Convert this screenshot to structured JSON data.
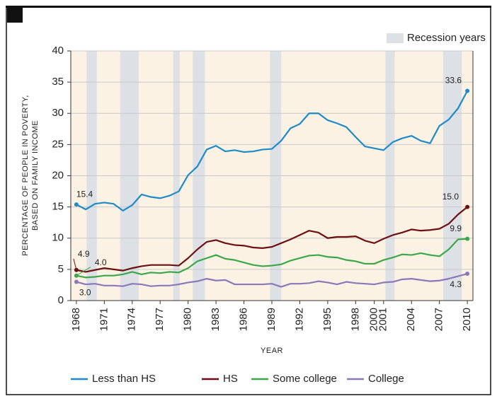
{
  "chart_data": {
    "type": "line",
    "x": [
      1968,
      1969,
      1970,
      1971,
      1972,
      1973,
      1974,
      1975,
      1976,
      1977,
      1978,
      1979,
      1980,
      1981,
      1982,
      1983,
      1984,
      1985,
      1986,
      1987,
      1988,
      1989,
      1990,
      1991,
      1992,
      1993,
      1994,
      1995,
      1996,
      1997,
      1998,
      1999,
      2000,
      2001,
      2002,
      2003,
      2004,
      2005,
      2006,
      2007,
      2008,
      2009,
      2010
    ],
    "xlim": [
      1967.4,
      2010.6
    ],
    "xticks": [
      1968,
      1971,
      1974,
      1977,
      1980,
      1983,
      1986,
      1989,
      1992,
      1995,
      1998,
      2000,
      2001,
      2004,
      2007,
      2010
    ],
    "ylim": [
      0,
      40
    ],
    "yticks": [
      0,
      5,
      10,
      15,
      20,
      25,
      30,
      35,
      40
    ],
    "grid": true,
    "x_label": "YEAR",
    "y_label": [
      "PERCENTAGE OF PEOPLE IN POVERTY,",
      "BASED ON FAMILY INCOME"
    ],
    "recession_label": "Recession years",
    "recession_color": "#dde0e5",
    "recessions": [
      [
        1969.1,
        1970.2
      ],
      [
        1972.7,
        1974.7
      ],
      [
        1978.4,
        1979.1
      ],
      [
        1980.5,
        1981.8
      ],
      [
        1988.8,
        1990.0
      ],
      [
        2001.2,
        2002.2
      ],
      [
        2007.4,
        2009.4
      ]
    ],
    "series": [
      {
        "name": "Less than HS",
        "color": "#1f8ac8",
        "values": [
          15.4,
          14.6,
          15.5,
          15.7,
          15.5,
          14.4,
          15.3,
          17.0,
          16.6,
          16.4,
          16.8,
          17.5,
          20.1,
          21.5,
          24.2,
          24.8,
          23.9,
          24.1,
          23.8,
          23.9,
          24.2,
          24.3,
          25.6,
          27.6,
          28.3,
          30.0,
          30.0,
          28.9,
          28.4,
          27.8,
          26.2,
          24.7,
          24.4,
          24.1,
          25.4,
          26.0,
          26.4,
          25.6,
          25.2,
          28.0,
          29.0,
          30.8,
          33.6
        ],
        "value_labels": [
          "15.4",
          null,
          null,
          null,
          null,
          null,
          null,
          null,
          null,
          null,
          null,
          null,
          null,
          null,
          null,
          null,
          null,
          null,
          null,
          null,
          null,
          null,
          null,
          null,
          null,
          null,
          null,
          null,
          null,
          null,
          null,
          null,
          null,
          null,
          null,
          null,
          null,
          null,
          null,
          null,
          null,
          null,
          "33.6"
        ]
      },
      {
        "name": "HS",
        "color": "#6b0f12",
        "values": [
          4.9,
          4.6,
          4.9,
          5.2,
          5.0,
          4.8,
          5.2,
          5.5,
          5.7,
          5.7,
          5.7,
          5.6,
          6.8,
          8.2,
          9.4,
          9.7,
          9.2,
          8.9,
          8.8,
          8.5,
          8.4,
          8.6,
          9.2,
          9.8,
          10.5,
          11.2,
          10.9,
          10.0,
          10.2,
          10.2,
          10.3,
          9.6,
          9.2,
          9.9,
          10.5,
          10.9,
          11.4,
          11.2,
          11.3,
          11.5,
          12.3,
          13.8,
          15.0
        ],
        "value_labels": [
          "4.9",
          null,
          null,
          null,
          null,
          null,
          null,
          null,
          null,
          null,
          null,
          null,
          null,
          null,
          null,
          null,
          null,
          null,
          null,
          null,
          null,
          null,
          null,
          null,
          null,
          null,
          null,
          null,
          null,
          null,
          null,
          null,
          null,
          null,
          null,
          null,
          null,
          null,
          null,
          null,
          null,
          null,
          "15.0"
        ]
      },
      {
        "name": "Some college",
        "color": "#3aa84a",
        "values": [
          4.0,
          3.7,
          3.8,
          4.0,
          4.0,
          4.2,
          4.6,
          4.2,
          4.5,
          4.4,
          4.6,
          4.5,
          5.2,
          6.3,
          6.8,
          7.3,
          6.7,
          6.5,
          6.1,
          5.7,
          5.5,
          5.6,
          5.8,
          6.4,
          6.8,
          7.2,
          7.3,
          7.0,
          6.9,
          6.5,
          6.3,
          5.9,
          5.9,
          6.5,
          6.9,
          7.4,
          7.3,
          7.6,
          7.3,
          7.1,
          8.2,
          9.8,
          9.9
        ],
        "value_labels": [
          "4.0",
          null,
          null,
          null,
          null,
          null,
          null,
          null,
          null,
          null,
          null,
          null,
          null,
          null,
          null,
          null,
          null,
          null,
          null,
          null,
          null,
          null,
          null,
          null,
          null,
          null,
          null,
          null,
          null,
          null,
          null,
          null,
          null,
          null,
          null,
          null,
          null,
          null,
          null,
          null,
          null,
          null,
          "9.9"
        ]
      },
      {
        "name": "College",
        "color": "#8a78b8",
        "values": [
          3.0,
          2.6,
          2.7,
          2.4,
          2.4,
          2.3,
          2.7,
          2.6,
          2.3,
          2.4,
          2.4,
          2.6,
          2.9,
          3.1,
          3.5,
          3.2,
          3.3,
          2.6,
          2.6,
          2.6,
          2.6,
          2.7,
          2.2,
          2.7,
          2.7,
          2.8,
          3.1,
          2.9,
          2.6,
          3.0,
          2.8,
          2.7,
          2.6,
          2.9,
          3.0,
          3.4,
          3.5,
          3.3,
          3.1,
          3.2,
          3.5,
          3.9,
          4.3
        ],
        "value_labels": [
          "3.0",
          null,
          null,
          null,
          null,
          null,
          null,
          null,
          null,
          null,
          null,
          null,
          null,
          null,
          null,
          null,
          null,
          null,
          null,
          null,
          null,
          null,
          null,
          null,
          null,
          null,
          null,
          null,
          null,
          null,
          null,
          null,
          null,
          null,
          null,
          null,
          null,
          null,
          null,
          null,
          null,
          null,
          "4.3"
        ]
      }
    ]
  }
}
